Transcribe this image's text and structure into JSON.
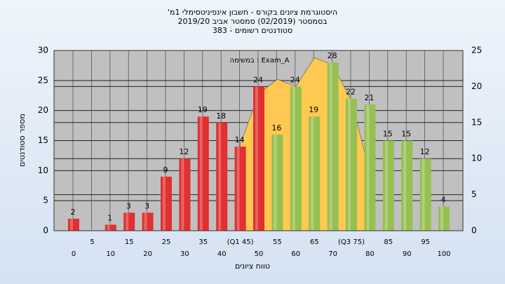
{
  "chart_data": {
    "type": "bar",
    "title": [
      "'היסטוגרמת ציונים בקורס - חשבון אינפיניטסימלי 1מ",
      "בסמסטר  (02/2019)  סמסטר אביב 2019/20",
      "סטודנטים רשומים - 383"
    ],
    "annotation": "במשימה : Exam_A",
    "x_label": "טווח ציונים",
    "y_label": "מספר סטודנטים",
    "categories": [
      "0",
      "5",
      "10",
      "15",
      "20",
      "25",
      "30",
      "35",
      "40",
      "(Q1 45)",
      "50",
      "55",
      "60",
      "65",
      "70",
      "(Q3 75)",
      "80",
      "85",
      "90",
      "95",
      "100"
    ],
    "series": [
      {
        "type": "area",
        "axis": "y2",
        "color": "#ffc850",
        "values": [
          null,
          null,
          null,
          null,
          null,
          null,
          null,
          null,
          null,
          12,
          19,
          21,
          20,
          24,
          23,
          18,
          8,
          null,
          null,
          null,
          null
        ]
      },
      {
        "type": "bar",
        "values": [
          2,
          0,
          1,
          3,
          3,
          9,
          12,
          19,
          18,
          14,
          24,
          16,
          24,
          19,
          28,
          22,
          21,
          15,
          15,
          12,
          4
        ],
        "value_labels": [
          "2",
          null,
          "1",
          "3",
          "3",
          "9",
          "12",
          "19",
          "18",
          "14",
          "24",
          "16",
          "24",
          "19",
          "28",
          "22",
          "21",
          "15",
          "15",
          "12",
          "4"
        ],
        "colors": [
          "#e03030",
          "#e03030",
          "#e03030",
          "#e03030",
          "#e03030",
          "#e03030",
          "#e03030",
          "#e03030",
          "#e03030",
          "#e03030",
          "#e03030",
          "#96c050",
          "#96c050",
          "#96c050",
          "#96c050",
          "#96c050",
          "#96c050",
          "#96c050",
          "#96c050",
          "#96c050",
          "#96c050"
        ]
      }
    ],
    "ylim": [
      0,
      30
    ],
    "yticks": [
      0,
      5,
      10,
      15,
      20,
      25,
      30
    ],
    "y2lim": [
      0,
      25
    ],
    "y2ticks": [
      0,
      5,
      10,
      15,
      20,
      25
    ],
    "grid": true
  }
}
